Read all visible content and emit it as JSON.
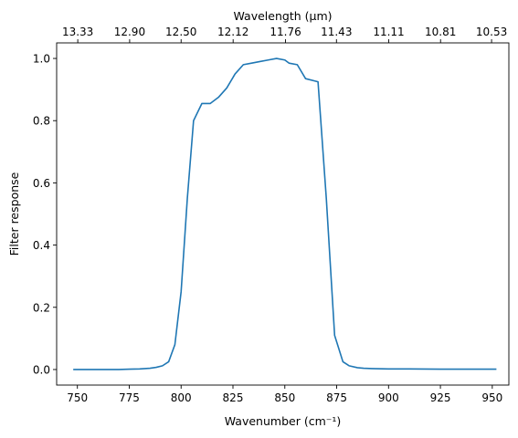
{
  "chart_data": {
    "type": "line",
    "xlabel": "Wavenumber (cm⁻¹)",
    "ylabel": "Filter response",
    "x2label": "Wavelength (μm)",
    "xlim": [
      740,
      958
    ],
    "ylim": [
      -0.05,
      1.05
    ],
    "x_ticks": [
      750,
      775,
      800,
      825,
      850,
      875,
      900,
      925,
      950
    ],
    "x_tick_labels": [
      "750",
      "775",
      "800",
      "825",
      "850",
      "875",
      "900",
      "925",
      "950"
    ],
    "y_ticks": [
      0.0,
      0.2,
      0.4,
      0.6,
      0.8,
      1.0
    ],
    "y_tick_labels": [
      "0.0",
      "0.2",
      "0.4",
      "0.6",
      "0.8",
      "1.0"
    ],
    "x2_ticks": [
      13.33,
      12.9,
      12.5,
      12.12,
      11.76,
      11.43,
      11.11,
      10.81,
      10.53
    ],
    "x2_tick_labels": [
      "13.33",
      "12.90",
      "12.50",
      "12.12",
      "11.76",
      "11.43",
      "11.11",
      "10.81",
      "10.53"
    ],
    "grid": false,
    "series": [
      {
        "color": "#1f77b4",
        "x": [
          748,
          760,
          770,
          775,
          780,
          785,
          788,
          791,
          794,
          797,
          800,
          803,
          806,
          810,
          814,
          818,
          822,
          826,
          830,
          834,
          838,
          842,
          846,
          850,
          852,
          856,
          860,
          866,
          870,
          874,
          878,
          881,
          885,
          888,
          892,
          900,
          910,
          925,
          940,
          952
        ],
        "y": [
          0.0,
          0.0,
          0.0,
          0.001,
          0.002,
          0.004,
          0.007,
          0.012,
          0.025,
          0.08,
          0.25,
          0.55,
          0.8,
          0.855,
          0.855,
          0.875,
          0.905,
          0.95,
          0.98,
          0.985,
          0.99,
          0.995,
          1.0,
          0.995,
          0.985,
          0.98,
          0.935,
          0.925,
          0.55,
          0.11,
          0.025,
          0.012,
          0.006,
          0.004,
          0.003,
          0.002,
          0.002,
          0.001,
          0.001,
          0.001
        ]
      }
    ]
  }
}
